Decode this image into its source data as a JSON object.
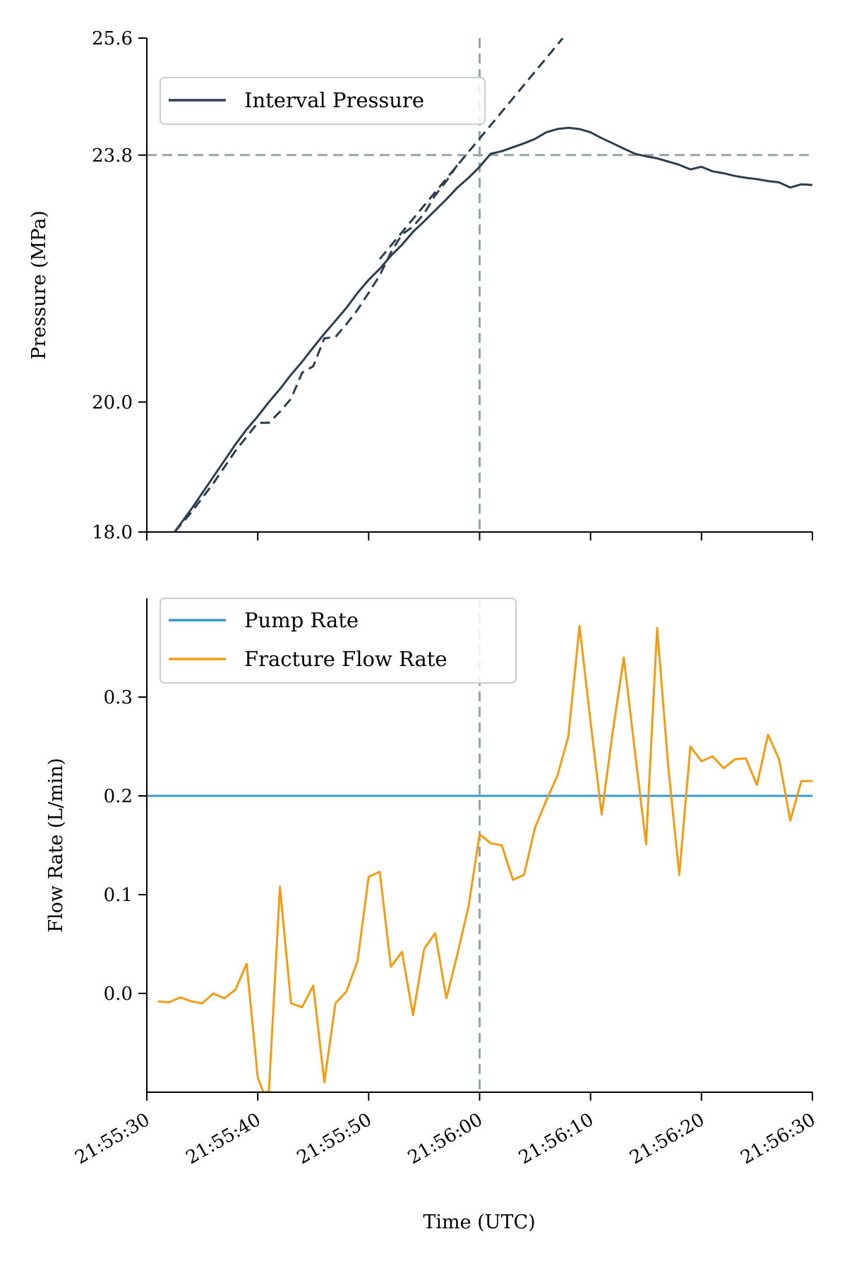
{
  "chart_data": [
    {
      "type": "line",
      "ylabel": "Pressure (MPa)",
      "yticks": [
        "18.0",
        "20.0",
        "23.8",
        "25.6"
      ],
      "ylim": [
        18.0,
        25.6
      ],
      "xlim": [
        "21:55:30",
        "21:56:30"
      ],
      "grid": false,
      "legend_placement": "upper-left",
      "series": [
        {
          "name": "Interval Pressure",
          "color": "#2c3e50",
          "style": "solid",
          "x": [
            2.5,
            4,
            5,
            6,
            7,
            8,
            9,
            10,
            11,
            12,
            13,
            14,
            15,
            16,
            17,
            18,
            19,
            20,
            21,
            22,
            23,
            24,
            25,
            26,
            27,
            28,
            29,
            30,
            31,
            32,
            33,
            34,
            35,
            36,
            37,
            38,
            39,
            40,
            41,
            42,
            43,
            44,
            45,
            46,
            47,
            48,
            49,
            50,
            51,
            52,
            53,
            54,
            55,
            56,
            57,
            58,
            59,
            60
          ],
          "values": [
            18.0,
            18.35,
            18.6,
            18.85,
            19.1,
            19.35,
            19.58,
            19.78,
            20.0,
            20.2,
            20.42,
            20.62,
            20.84,
            21.05,
            21.25,
            21.45,
            21.68,
            21.88,
            22.05,
            22.25,
            22.42,
            22.62,
            22.78,
            22.95,
            23.12,
            23.3,
            23.45,
            23.62,
            23.82,
            23.86,
            23.92,
            23.98,
            24.05,
            24.15,
            24.2,
            24.22,
            24.2,
            24.15,
            24.06,
            23.98,
            23.9,
            23.82,
            23.78,
            23.75,
            23.7,
            23.65,
            23.58,
            23.62,
            23.55,
            23.52,
            23.48,
            23.45,
            23.43,
            23.4,
            23.38,
            23.3,
            23.35,
            23.34
          ]
        },
        {
          "color": "#2c3e50",
          "style": "dashed",
          "x": [
            2.5,
            4,
            6,
            8,
            10,
            11,
            12,
            13,
            14,
            15,
            16,
            17,
            18,
            19,
            20,
            21,
            22,
            23,
            24,
            25,
            26,
            27,
            28
          ],
          "values": [
            18.0,
            18.3,
            18.75,
            19.25,
            19.68,
            19.68,
            19.85,
            20.05,
            20.45,
            20.55,
            20.98,
            21.0,
            21.2,
            21.42,
            21.68,
            21.95,
            22.3,
            22.58,
            22.7,
            22.9,
            23.18,
            23.4,
            23.65
          ]
        },
        {
          "color": "#2c3e50",
          "style": "dashed",
          "x": [
            21,
            37.5
          ],
          "values": [
            22.2,
            25.6
          ]
        }
      ],
      "reference_lines": [
        {
          "orientation": "horizontal",
          "value": 23.8,
          "color": "#95a5a6",
          "style": "dashed"
        },
        {
          "orientation": "vertical",
          "value": "21:56:00",
          "color": "#95a5a6",
          "style": "dashed"
        }
      ]
    },
    {
      "type": "line",
      "xlabel": "Time (UTC)",
      "ylabel": "Flow Rate (L/min)",
      "yticks": [
        "0.0",
        "0.1",
        "0.2",
        "0.3"
      ],
      "ylim": [
        -0.1,
        0.4
      ],
      "xticks": [
        "21:55:30",
        "21:55:40",
        "21:55:50",
        "21:56:00",
        "21:56:10",
        "21:56:20",
        "21:56:30"
      ],
      "xlim": [
        "21:55:30",
        "21:56:30"
      ],
      "grid": false,
      "legend_placement": "upper-left",
      "series": [
        {
          "name": "Pump Rate",
          "color": "#3498db",
          "x": [
            0,
            60
          ],
          "values": [
            0.2,
            0.2
          ]
        },
        {
          "name": "Fracture Flow Rate",
          "color": "#f39c12",
          "x": [
            1,
            2,
            3,
            4,
            5,
            6,
            7,
            8,
            9,
            10,
            10.5,
            11,
            12,
            13,
            14,
            15,
            16,
            17,
            18,
            19,
            20,
            21,
            22,
            23,
            24,
            25,
            26,
            27,
            28,
            29,
            30,
            31,
            32,
            33,
            34,
            35,
            36,
            37,
            38,
            39,
            40,
            41,
            42,
            43,
            44,
            45,
            46,
            47,
            48,
            49,
            50,
            51,
            52,
            53,
            54,
            55,
            56,
            57,
            58,
            59,
            60
          ],
          "values": [
            -0.008,
            -0.009,
            -0.004,
            -0.008,
            -0.01,
            0.0,
            -0.005,
            0.004,
            0.03,
            -0.085,
            -0.1,
            -0.1,
            0.108,
            -0.01,
            -0.014,
            0.008,
            -0.09,
            -0.01,
            0.002,
            0.033,
            0.118,
            0.123,
            0.027,
            0.042,
            -0.022,
            0.045,
            0.061,
            -0.005,
            0.04,
            0.088,
            0.161,
            0.152,
            0.15,
            0.115,
            0.12,
            0.168,
            0.195,
            0.22,
            0.26,
            0.372,
            0.275,
            0.181,
            0.265,
            0.34,
            0.245,
            0.151,
            0.37,
            0.23,
            0.12,
            0.25,
            0.235,
            0.24,
            0.228,
            0.237,
            0.238,
            0.211,
            0.262,
            0.237,
            0.175,
            0.215,
            0.215
          ]
        }
      ],
      "reference_lines": [
        {
          "orientation": "vertical",
          "value": "21:56:00",
          "color": "#95a5a6",
          "style": "dashed"
        }
      ]
    }
  ]
}
